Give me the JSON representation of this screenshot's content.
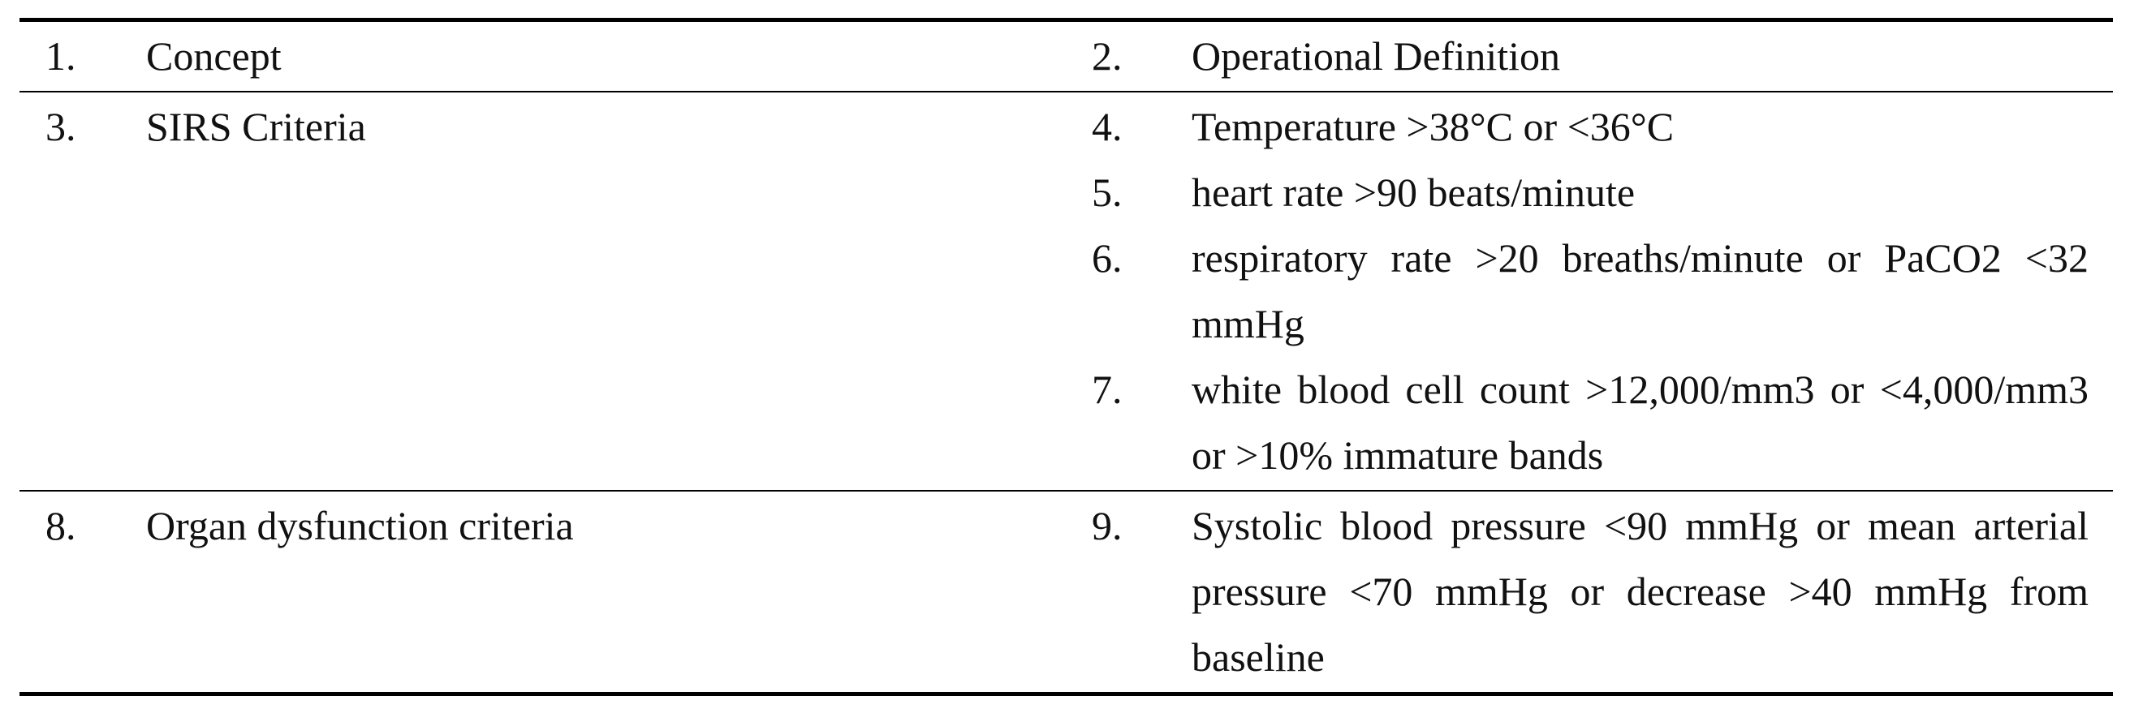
{
  "table": {
    "header": [
      {
        "number": "1.",
        "text": "Concept"
      },
      {
        "number": "2.",
        "text": "Operational Definition"
      }
    ],
    "rows": [
      {
        "concept": {
          "number": "3.",
          "text": "SIRS Criteria"
        },
        "definitions": [
          {
            "number": "4.",
            "text": "Temperature >38°C or <36°C"
          },
          {
            "number": "5.",
            "text": "heart rate >90 beats/minute"
          },
          {
            "number": "6.",
            "text": "respiratory rate >20 breaths/minute or PaCO2 <32 mmHg"
          },
          {
            "number": "7.",
            "text": "white blood cell count >12,000/mm3 or <4,000/mm3 or >10% immature bands"
          }
        ]
      },
      {
        "concept": {
          "number": "8.",
          "text": "Organ dysfunction criteria"
        },
        "definitions": [
          {
            "number": "9.",
            "text": "Systolic blood pressure <90 mmHg or mean arterial pressure <70 mmHg or decrease >40 mmHg from baseline"
          }
        ]
      }
    ]
  }
}
